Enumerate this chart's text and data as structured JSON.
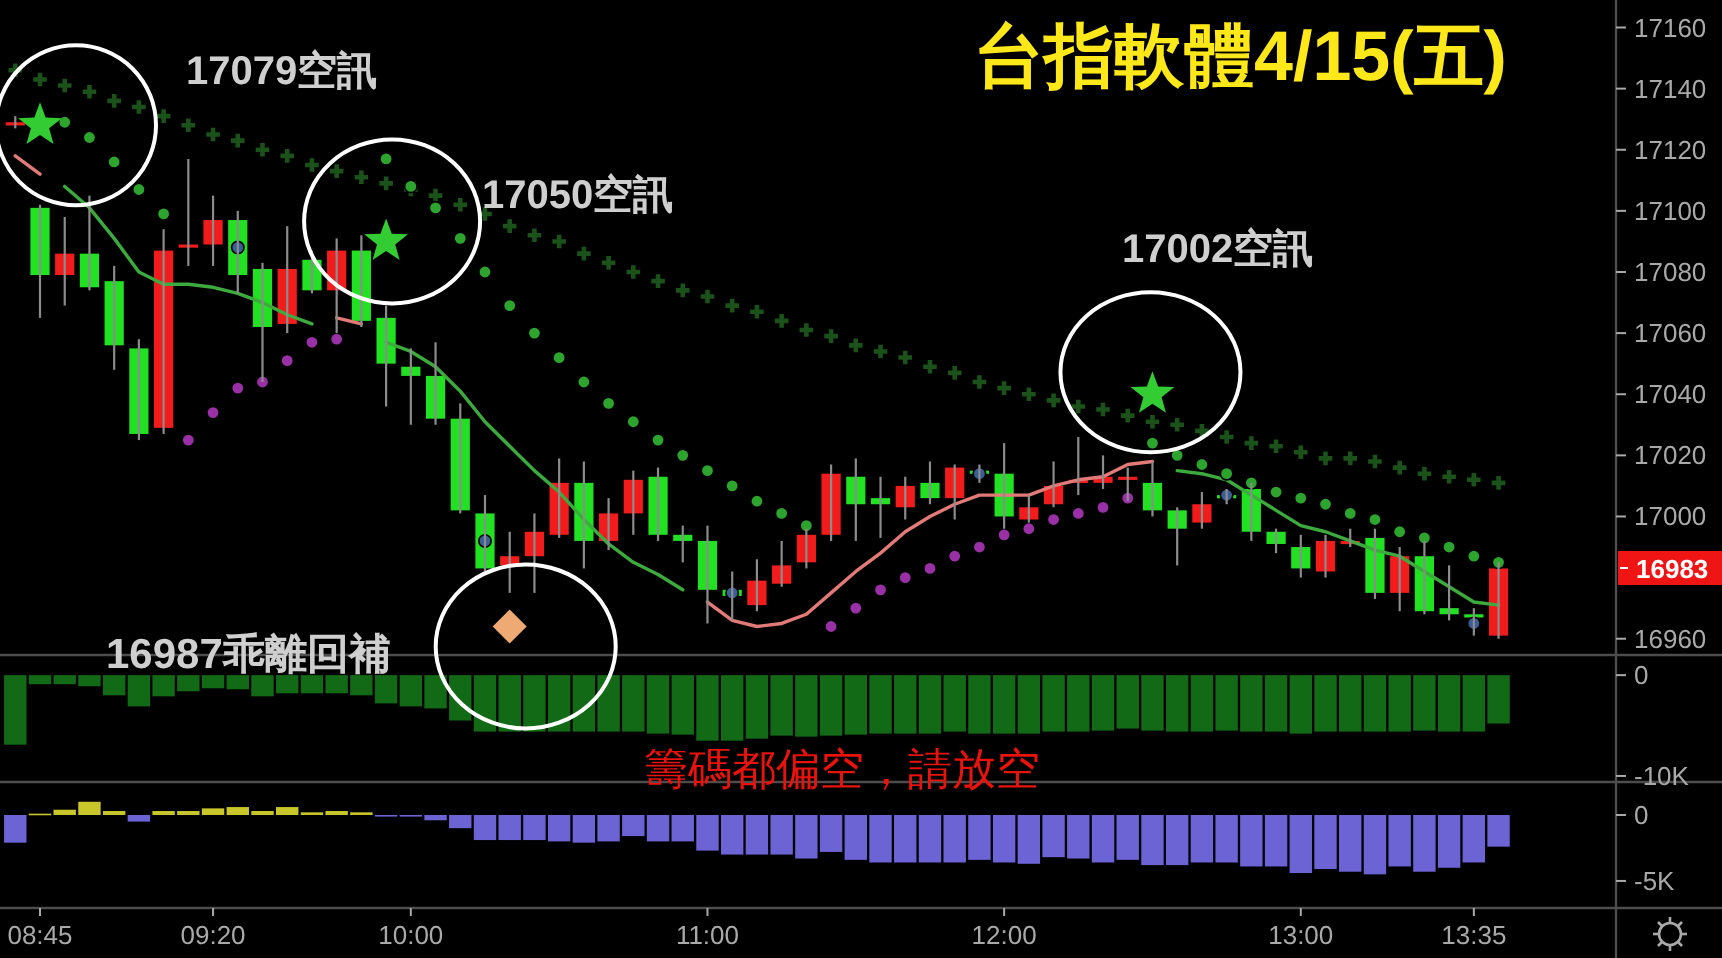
{
  "chart_data": [
    {
      "type": "candlestick",
      "title": "台指軟體4/15(五)",
      "categories": [
        null,
        null,
        null,
        null,
        null,
        null,
        null,
        null,
        null,
        null,
        null,
        null,
        null,
        null,
        null,
        null,
        null,
        null,
        null,
        null,
        null,
        null,
        null,
        null,
        null,
        null,
        null,
        null,
        null,
        null,
        null,
        null,
        null,
        null,
        null,
        null,
        null,
        null,
        null,
        null,
        null,
        null,
        null,
        null,
        null,
        null,
        null,
        null,
        null,
        null,
        null,
        null,
        null,
        null,
        null,
        null,
        null,
        null,
        null,
        null,
        null
      ],
      "ohlc": [
        [
          17128,
          17131,
          17127,
          17129
        ],
        [
          17101,
          17102,
          17065,
          17079
        ],
        [
          17079,
          17098,
          17069,
          17086
        ],
        [
          17086,
          17105,
          17074,
          17075
        ],
        [
          17077,
          17082,
          17048,
          17056
        ],
        [
          17055,
          17058,
          17025,
          17027
        ],
        [
          17029,
          17094,
          17027,
          17087
        ],
        [
          17088,
          17117,
          17082,
          17089
        ],
        [
          17089,
          17105,
          17082,
          17097
        ],
        [
          17097,
          17100,
          17073,
          17079
        ],
        [
          17081,
          17083,
          17044,
          17062
        ],
        [
          17063,
          17095,
          17060,
          17081
        ],
        [
          17084,
          17087,
          17073,
          17074
        ],
        [
          17074,
          17091,
          17060,
          17087
        ],
        [
          17087,
          17092,
          17062,
          17064
        ],
        [
          17065,
          17069,
          17036,
          17050
        ],
        [
          17049,
          17055,
          17030,
          17046
        ],
        [
          17046,
          17057,
          17030,
          17032
        ],
        [
          17032,
          17037,
          17001,
          17002
        ],
        [
          17001,
          17007,
          16982,
          16983
        ],
        [
          16984,
          16995,
          16975,
          16987
        ],
        [
          16987,
          17001,
          16975,
          16995
        ],
        [
          16994,
          17019,
          16993,
          17011
        ],
        [
          17011,
          17018,
          16983,
          16992
        ],
        [
          16992,
          17006,
          16989,
          17001
        ],
        [
          17001,
          17015,
          16994,
          17012
        ],
        [
          17013,
          17016,
          16992,
          16994
        ],
        [
          16994,
          16997,
          16985,
          16992
        ],
        [
          16992,
          16997,
          16965,
          16976
        ],
        [
          16976,
          16982,
          16966,
          16974
        ],
        [
          16971,
          16986,
          16969,
          16979
        ],
        [
          16978,
          16992,
          16977,
          16984
        ],
        [
          16985,
          16996,
          16983,
          16994
        ],
        [
          16994,
          17017,
          16992,
          17014
        ],
        [
          17013,
          17019,
          16992,
          17004
        ],
        [
          17006,
          17013,
          16993,
          17004
        ],
        [
          17003,
          17013,
          16999,
          17010
        ],
        [
          17011,
          17018,
          17004,
          17006
        ],
        [
          17006,
          17017,
          16999,
          17016
        ],
        [
          17015,
          17017,
          17011,
          17014
        ],
        [
          17014,
          17024,
          16996,
          17000
        ],
        [
          16999,
          17007,
          16998,
          17003
        ],
        [
          17004,
          17018,
          17003,
          17010
        ],
        [
          17011,
          17026,
          17007,
          17012
        ],
        [
          17011,
          17020,
          17009,
          17013
        ],
        [
          17012,
          17016,
          17005,
          17013
        ],
        [
          17011,
          17018,
          17000,
          17002
        ],
        [
          17002,
          17003,
          16984,
          16996
        ],
        [
          16998,
          17008,
          16996,
          17004
        ],
        [
          17007,
          17009,
          17004,
          17006
        ],
        [
          17009,
          17011,
          16992,
          16995
        ],
        [
          16995,
          16996,
          16988,
          16991
        ],
        [
          16990,
          16994,
          16980,
          16983
        ],
        [
          16982,
          16994,
          16980,
          16992
        ],
        [
          16991,
          16996,
          16990,
          16992
        ],
        [
          16993,
          16996,
          16973,
          16975
        ],
        [
          16975,
          16990,
          16969,
          16987
        ],
        [
          16987,
          16992,
          16968,
          16969
        ],
        [
          16970,
          16984,
          16966,
          16968
        ],
        [
          16968,
          16970,
          16961,
          16967
        ],
        [
          16961,
          16985,
          16960,
          16983
        ]
      ],
      "colors": [
        "#f21c1c",
        "#22e022",
        "#f21c1c",
        "#22e022",
        "#22e022",
        "#22e022",
        "#f21c1c",
        "#f21c1c",
        "#f21c1c",
        "#22e022",
        "#22e022",
        "#f21c1c",
        "#22e022",
        "#f21c1c",
        "#22e022",
        "#22e022",
        "#22e022",
        "#22e022",
        "#22e022",
        "#22e022",
        "#f21c1c",
        "#f21c1c",
        "#f21c1c",
        "#22e022",
        "#f21c1c",
        "#f21c1c",
        "#22e022",
        "#22e022",
        "#22e022",
        "#22e022",
        "#f21c1c",
        "#f21c1c",
        "#f21c1c",
        "#f21c1c",
        "#22e022",
        "#22e022",
        "#f21c1c",
        "#22e022",
        "#f21c1c",
        "#22e022",
        "#22e022",
        "#f21c1c",
        "#f21c1c",
        "#f21c1c",
        "#f21c1c",
        "#f21c1c",
        "#22e022",
        "#22e022",
        "#f21c1c",
        "#22e022",
        "#22e022",
        "#22e022",
        "#22e022",
        "#f21c1c",
        "#f21c1c",
        "#22e022",
        "#f21c1c",
        "#22e022",
        "#22e022",
        "#22e022",
        "#f21c1c"
      ],
      "series": [
        {
          "type": "line",
          "color": "#3daa3d",
          "values": [
            null,
            null,
            17108,
            17101,
            17091,
            17080,
            17076,
            17076,
            17075,
            17073,
            17070,
            17066,
            17063,
            null,
            null,
            17057,
            17054,
            17049,
            17041,
            17031,
            17023,
            17015,
            17008,
            16999,
            16991,
            16985,
            16981,
            16976,
            null,
            null,
            null,
            null,
            null,
            null,
            null,
            null,
            null,
            null,
            null,
            null,
            null,
            null,
            null,
            null,
            null,
            null,
            null,
            17015,
            17014,
            17012,
            17007,
            17002,
            16997,
            16995,
            16992,
            16989,
            16987,
            16982,
            16977,
            16972,
            16971
          ]
        },
        {
          "type": "line",
          "color": "#e27a78",
          "values": [
            17118,
            17112,
            null,
            null,
            null,
            null,
            null,
            null,
            null,
            null,
            null,
            null,
            null,
            17065,
            17063,
            null,
            null,
            null,
            null,
            null,
            null,
            null,
            null,
            null,
            null,
            null,
            null,
            null,
            16972,
            16966,
            16964,
            16965,
            16968,
            16975,
            16982,
            16988,
            16995,
            17000,
            17004,
            17007,
            17007,
            17007,
            17010,
            17012,
            17013,
            17017,
            17018,
            null,
            null,
            null,
            null,
            null,
            null,
            null,
            null,
            null,
            null,
            null,
            null,
            null,
            null
          ]
        },
        {
          "type": "scatter",
          "marker": "cross",
          "color": "#1a521a",
          "values": [
            17146,
            17143,
            17141,
            17139,
            17136,
            17134,
            17131,
            17128,
            17125,
            17123,
            17120,
            17118,
            17115,
            17113,
            17111,
            17109,
            17107,
            17105,
            17102,
            17099,
            17095,
            17092,
            17090,
            17086,
            17083,
            17080,
            17077,
            17074,
            17072,
            17069,
            17067,
            17064,
            17061,
            17059,
            17056,
            17054,
            17052,
            17049,
            17047,
            17044,
            17042,
            17040,
            17038,
            17036,
            17035,
            17033,
            17031,
            17030,
            17028,
            17026,
            17024,
            17023,
            17021,
            17019,
            17019,
            17018,
            17016,
            17014,
            17013,
            17012,
            17011
          ]
        },
        {
          "type": "scatter",
          "marker": "circle",
          "color": "#2da42d",
          "values": [
            null,
            null,
            17129,
            17124,
            17116,
            17107,
            17099,
            null,
            null,
            null,
            null,
            null,
            null,
            null,
            null,
            17117,
            17108,
            17101,
            17091,
            17080,
            17069,
            17060,
            17052,
            17044,
            17037,
            17031,
            17025,
            17020,
            17015,
            17010,
            17005,
            17001,
            16997,
            null,
            null,
            null,
            null,
            null,
            null,
            null,
            null,
            null,
            null,
            null,
            null,
            null,
            17024,
            17020,
            17017,
            17014,
            17011,
            17008,
            17006,
            17004,
            17001,
            16999,
            16995,
            16993,
            16990,
            16987,
            16985
          ]
        },
        {
          "type": "scatter",
          "marker": "circle",
          "color": "#9a30a6",
          "values": [
            null,
            null,
            null,
            null,
            null,
            null,
            null,
            17025,
            17034,
            17042,
            17044,
            17051,
            17057,
            17058,
            null,
            null,
            null,
            null,
            null,
            null,
            null,
            null,
            null,
            null,
            null,
            null,
            null,
            null,
            null,
            null,
            null,
            null,
            null,
            16964,
            16970,
            16976,
            16980,
            16983,
            16987,
            16990,
            16994,
            16996,
            16999,
            17001,
            17003,
            17006,
            null,
            null,
            null,
            null,
            null,
            null,
            null,
            null,
            null,
            null,
            null,
            null,
            null,
            null,
            null
          ]
        },
        {
          "type": "scatter",
          "marker": "circle",
          "color": "#3a5e96",
          "values": [
            null,
            null,
            null,
            null,
            null,
            null,
            null,
            null,
            null,
            17088,
            null,
            null,
            null,
            null,
            null,
            null,
            null,
            null,
            null,
            16992,
            null,
            null,
            null,
            null,
            null,
            null,
            null,
            null,
            null,
            16975,
            null,
            null,
            null,
            null,
            null,
            null,
            null,
            null,
            null,
            17014,
            null,
            null,
            null,
            null,
            null,
            null,
            null,
            null,
            null,
            17007,
            null,
            null,
            null,
            null,
            null,
            null,
            null,
            null,
            null,
            16965,
            null
          ]
        },
        {
          "type": "scatter",
          "marker": "star",
          "color": "#33cc33",
          "values": [
            null,
            17128,
            null,
            null,
            null,
            null,
            null,
            null,
            null,
            null,
            null,
            null,
            null,
            null,
            null,
            17090,
            null,
            null,
            null,
            null,
            null,
            null,
            null,
            null,
            null,
            null,
            null,
            null,
            null,
            null,
            null,
            null,
            null,
            null,
            null,
            null,
            null,
            null,
            null,
            null,
            null,
            null,
            null,
            null,
            null,
            null,
            17040,
            null,
            null,
            null,
            null,
            null,
            null,
            null,
            null,
            null,
            null,
            null,
            null,
            null,
            null
          ]
        },
        {
          "type": "scatter",
          "marker": "diamond",
          "color": "#eeaa72",
          "values": [
            null,
            null,
            null,
            null,
            null,
            null,
            null,
            null,
            null,
            null,
            null,
            null,
            null,
            null,
            null,
            null,
            null,
            null,
            null,
            null,
            16964,
            null,
            null,
            null,
            null,
            null,
            null,
            null,
            null,
            null,
            null,
            null,
            null,
            null,
            null,
            null,
            null,
            null,
            null,
            null,
            null,
            null,
            null,
            null,
            null,
            null,
            null,
            null,
            null,
            null,
            null,
            null,
            null,
            null,
            null,
            null,
            null,
            null,
            null,
            null,
            null
          ]
        }
      ],
      "ylim": [
        16955,
        17169
      ],
      "yticks": [
        16960,
        17000,
        17020,
        17040,
        17060,
        17080,
        17100,
        17120,
        17140,
        17160
      ],
      "tick_labels": "y",
      "annotations": [
        "17079空訊",
        "17050空訊",
        "17002空訊",
        "16987乖離回補",
        "16983"
      ]
    },
    {
      "type": "bar",
      "categories": [
        null,
        null,
        null,
        null,
        null,
        null,
        null,
        null,
        null,
        null,
        null,
        null,
        null,
        null,
        null,
        null,
        null,
        null,
        null,
        null,
        null,
        null,
        null,
        null,
        null,
        null,
        null,
        null,
        null,
        null,
        null,
        null,
        null,
        null,
        null,
        null,
        null,
        null,
        null,
        null,
        null,
        null,
        null,
        null,
        null,
        null,
        null,
        null,
        null,
        null,
        null,
        null,
        null,
        null,
        null,
        null,
        null,
        null,
        null,
        null,
        null
      ],
      "values": [
        -6900,
        -900,
        -900,
        -1100,
        -2000,
        -3100,
        -2100,
        -1600,
        -1300,
        -1400,
        -2100,
        -1800,
        -1800,
        -1800,
        -2000,
        -2800,
        -3100,
        -3300,
        -4500,
        -5600,
        -5600,
        -5600,
        -5600,
        -5600,
        -5600,
        -5600,
        -5800,
        -5900,
        -6500,
        -6500,
        -6300,
        -6000,
        -6100,
        -6000,
        -5900,
        -5800,
        -5800,
        -5800,
        -5600,
        -5800,
        -5800,
        -5800,
        -5600,
        -5600,
        -5500,
        -5300,
        -5500,
        -5600,
        -5600,
        -5500,
        -5600,
        -5600,
        -5800,
        -5600,
        -5600,
        -5600,
        -5600,
        -5500,
        -5600,
        -5600,
        -4800
      ],
      "color": "#136a16",
      "ylim": [
        -10600,
        1900
      ],
      "yticks": [
        0,
        {
          "value": -10000,
          "label": "-10K"
        }
      ],
      "tick_labels": "y",
      "annotations": [
        "籌碼都偏空，請放空"
      ]
    },
    {
      "type": "bar",
      "categories": [
        null,
        "08:45",
        null,
        null,
        null,
        null,
        null,
        null,
        "09:20",
        null,
        null,
        null,
        null,
        null,
        null,
        null,
        "10:00",
        null,
        null,
        null,
        null,
        null,
        null,
        null,
        null,
        null,
        null,
        null,
        "11:00",
        null,
        null,
        null,
        null,
        null,
        null,
        null,
        null,
        null,
        null,
        null,
        "12:00",
        null,
        null,
        null,
        null,
        null,
        null,
        null,
        null,
        null,
        null,
        null,
        "13:00",
        null,
        null,
        null,
        null,
        null,
        null,
        "13:35",
        null
      ],
      "values": [
        -2100,
        100,
        400,
        1000,
        300,
        -500,
        300,
        300,
        500,
        600,
        300,
        600,
        200,
        300,
        200,
        -100,
        -100,
        -400,
        -1000,
        -1900,
        -1900,
        -1900,
        -2000,
        -2100,
        -2000,
        -1600,
        -2000,
        -2000,
        -2700,
        -3000,
        -3000,
        -3000,
        -3300,
        -2800,
        -3400,
        -3600,
        -3600,
        -3600,
        -3600,
        -3400,
        -3600,
        -3700,
        -3200,
        -3300,
        -3600,
        -3400,
        -3800,
        -3800,
        -3600,
        -3600,
        -3900,
        -3900,
        -4400,
        -4100,
        -4300,
        -4500,
        -3900,
        -4300,
        -4000,
        -3600,
        -2400
      ],
      "colors": [
        "#6c63d4",
        "#c9c62c",
        "#c9c62c",
        "#c9c62c",
        "#c9c62c",
        "#6c63d4",
        "#c9c62c",
        "#c9c62c",
        "#c9c62c",
        "#c9c62c",
        "#c9c62c",
        "#c9c62c",
        "#c9c62c",
        "#c9c62c",
        "#c9c62c",
        "#6c63d4",
        "#6c63d4",
        "#6c63d4",
        "#6c63d4",
        "#6c63d4",
        "#6c63d4",
        "#6c63d4",
        "#6c63d4",
        "#6c63d4",
        "#6c63d4",
        "#6c63d4",
        "#6c63d4",
        "#6c63d4",
        "#6c63d4",
        "#6c63d4",
        "#6c63d4",
        "#6c63d4",
        "#6c63d4",
        "#6c63d4",
        "#6c63d4",
        "#6c63d4",
        "#6c63d4",
        "#6c63d4",
        "#6c63d4",
        "#6c63d4",
        "#6c63d4",
        "#6c63d4",
        "#6c63d4",
        "#6c63d4",
        "#6c63d4",
        "#6c63d4",
        "#6c63d4",
        "#6c63d4",
        "#6c63d4",
        "#6c63d4",
        "#6c63d4",
        "#6c63d4",
        "#6c63d4",
        "#6c63d4",
        "#6c63d4",
        "#6c63d4",
        "#6c63d4",
        "#6c63d4",
        "#6c63d4",
        "#6c63d4",
        "#6c63d4"
      ],
      "ylim": [
        -7050,
        2500
      ],
      "yticks": [
        0,
        {
          "value": -5000,
          "label": "-5K"
        }
      ]
    }
  ]
}
